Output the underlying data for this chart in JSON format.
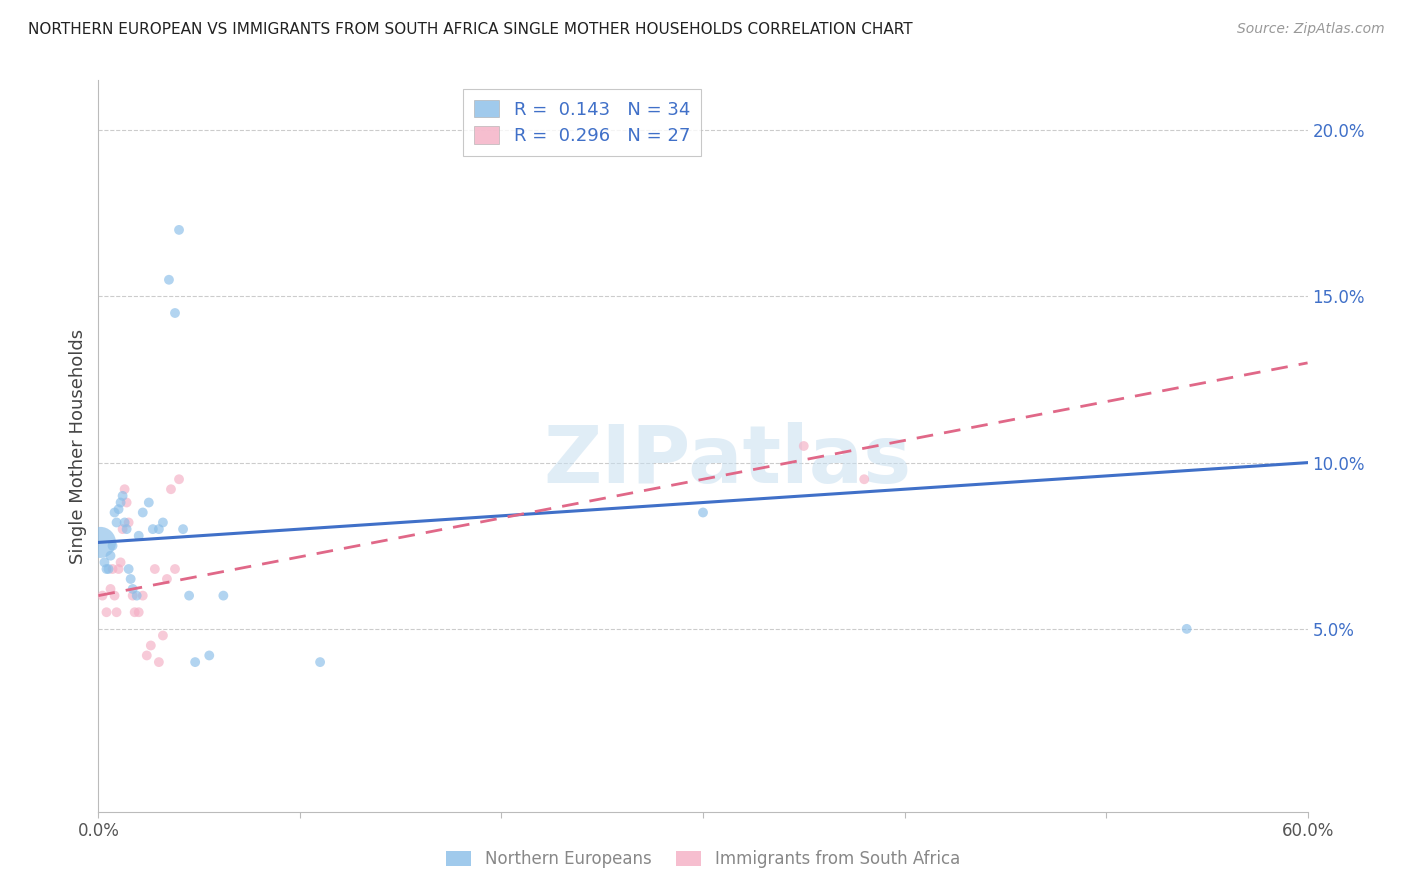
{
  "title": "NORTHERN EUROPEAN VS IMMIGRANTS FROM SOUTH AFRICA SINGLE MOTHER HOUSEHOLDS CORRELATION CHART",
  "source": "Source: ZipAtlas.com",
  "ylabel": "Single Mother Households",
  "xlim": [
    0.0,
    0.6
  ],
  "ylim": [
    -0.005,
    0.215
  ],
  "yticks_right": [
    0.05,
    0.1,
    0.15,
    0.2
  ],
  "ytick_labels_right": [
    "5.0%",
    "10.0%",
    "15.0%",
    "20.0%"
  ],
  "grid_yticks": [
    0.05,
    0.1,
    0.15,
    0.2
  ],
  "blue_color": "#89bde8",
  "pink_color": "#f4aec4",
  "blue_line_color": "#4070c8",
  "pink_line_color": "#e06888",
  "blue_R": 0.143,
  "blue_N": 34,
  "pink_R": 0.296,
  "pink_N": 27,
  "watermark_text": "ZIPatlas",
  "legend_blue_label": "Northern Europeans",
  "legend_pink_label": "Immigrants from South Africa",
  "blue_line_x0": 0.0,
  "blue_line_y0": 0.076,
  "blue_line_x1": 0.6,
  "blue_line_y1": 0.1,
  "pink_line_x0": 0.0,
  "pink_line_y0": 0.06,
  "pink_line_x1": 0.6,
  "pink_line_y1": 0.13,
  "blue_x": [
    0.001,
    0.003,
    0.004,
    0.005,
    0.006,
    0.007,
    0.008,
    0.009,
    0.01,
    0.011,
    0.012,
    0.013,
    0.014,
    0.015,
    0.016,
    0.017,
    0.019,
    0.02,
    0.022,
    0.025,
    0.027,
    0.03,
    0.032,
    0.035,
    0.038,
    0.04,
    0.042,
    0.045,
    0.048,
    0.055,
    0.062,
    0.11,
    0.3,
    0.54
  ],
  "blue_y": [
    0.076,
    0.07,
    0.068,
    0.068,
    0.072,
    0.075,
    0.085,
    0.082,
    0.086,
    0.088,
    0.09,
    0.082,
    0.08,
    0.068,
    0.065,
    0.062,
    0.06,
    0.078,
    0.085,
    0.088,
    0.08,
    0.08,
    0.082,
    0.155,
    0.145,
    0.17,
    0.08,
    0.06,
    0.04,
    0.042,
    0.06,
    0.04,
    0.085,
    0.05
  ],
  "blue_sizes": [
    500,
    50,
    50,
    50,
    50,
    50,
    50,
    50,
    50,
    50,
    50,
    50,
    50,
    50,
    50,
    50,
    50,
    50,
    50,
    50,
    50,
    50,
    50,
    50,
    50,
    50,
    50,
    50,
    50,
    50,
    50,
    50,
    50,
    50
  ],
  "pink_x": [
    0.002,
    0.004,
    0.006,
    0.007,
    0.008,
    0.009,
    0.01,
    0.011,
    0.012,
    0.013,
    0.014,
    0.015,
    0.017,
    0.018,
    0.02,
    0.022,
    0.024,
    0.026,
    0.028,
    0.03,
    0.032,
    0.034,
    0.036,
    0.038,
    0.04,
    0.35,
    0.38
  ],
  "pink_y": [
    0.06,
    0.055,
    0.062,
    0.068,
    0.06,
    0.055,
    0.068,
    0.07,
    0.08,
    0.092,
    0.088,
    0.082,
    0.06,
    0.055,
    0.055,
    0.06,
    0.042,
    0.045,
    0.068,
    0.04,
    0.048,
    0.065,
    0.092,
    0.068,
    0.095,
    0.105,
    0.095
  ],
  "pink_sizes": [
    50,
    50,
    50,
    50,
    50,
    50,
    50,
    50,
    50,
    50,
    50,
    50,
    50,
    50,
    50,
    50,
    50,
    50,
    50,
    50,
    50,
    50,
    50,
    50,
    50,
    50,
    50
  ]
}
